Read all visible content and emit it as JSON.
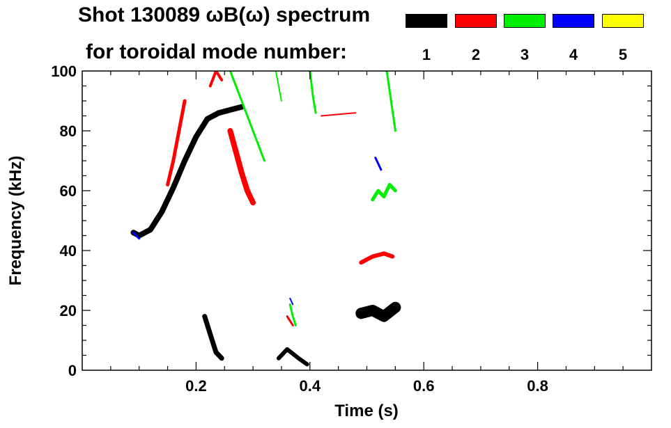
{
  "header": {
    "title_line1": "Shot 130089 ωB(ω) spectrum",
    "title_line2": "for toroidal mode number:",
    "modes": [
      {
        "number": "1",
        "color": "#000000"
      },
      {
        "number": "2",
        "color": "#ff0000"
      },
      {
        "number": "3",
        "color": "#00ee00"
      },
      {
        "number": "4",
        "color": "#0000ff"
      },
      {
        "number": "5",
        "color": "#ffff00"
      }
    ]
  },
  "chart_data": {
    "type": "heatmap",
    "title": "Shot 130089 ωB(ω) spectrum",
    "subtitle": "for toroidal mode number:",
    "xlabel": "Time (s)",
    "ylabel": "Frequency (kHz)",
    "xlim": [
      0.0,
      1.0
    ],
    "ylim": [
      0,
      100
    ],
    "x_ticks": [
      0.2,
      0.4,
      0.6,
      0.8
    ],
    "x_tick_labels": [
      "0.2",
      "0.4",
      "0.6",
      "0.8"
    ],
    "y_ticks": [
      0,
      20,
      40,
      60,
      80,
      100
    ],
    "y_tick_labels": [
      "0",
      "20",
      "40",
      "60",
      "80",
      "100"
    ],
    "grid": false,
    "legend": "top-right",
    "series": [
      {
        "name": "1",
        "color": "#000000",
        "segments": [
          {
            "t": [
              0.09,
              0.1,
              0.12,
              0.14,
              0.16,
              0.18,
              0.2,
              0.22,
              0.24,
              0.26,
              0.28
            ],
            "f": [
              46,
              45,
              47,
              53,
              61,
              70,
              78,
              84,
              86,
              87,
              88
            ],
            "width": 8
          },
          {
            "t": [
              0.215,
              0.225,
              0.235,
              0.245
            ],
            "f": [
              18,
              12,
              6,
              4
            ],
            "width": 7
          },
          {
            "t": [
              0.345,
              0.36,
              0.38,
              0.395
            ],
            "f": [
              4,
              7,
              4,
              2
            ],
            "width": 6
          },
          {
            "t": [
              0.49,
              0.51,
              0.53,
              0.55
            ],
            "f": [
              19,
              20,
              18,
              21
            ],
            "width": 16
          }
        ]
      },
      {
        "name": "2",
        "color": "#ff0000",
        "segments": [
          {
            "t": [
              0.15,
              0.16,
              0.17,
              0.18
            ],
            "f": [
              62,
              70,
              80,
              90
            ],
            "width": 5
          },
          {
            "t": [
              0.225,
              0.235,
              0.245
            ],
            "f": [
              95,
              100,
              97
            ],
            "width": 4
          },
          {
            "t": [
              0.26,
              0.27,
              0.28,
              0.29,
              0.3
            ],
            "f": [
              80,
              73,
              66,
              60,
              56
            ],
            "width": 8
          },
          {
            "t": [
              0.49,
              0.51,
              0.53,
              0.545
            ],
            "f": [
              36,
              38,
              39,
              38
            ],
            "width": 6
          },
          {
            "t": [
              0.42,
              0.48
            ],
            "f": [
              85,
              86
            ],
            "width": 2
          },
          {
            "t": [
              0.36,
              0.37
            ],
            "f": [
              18,
              15
            ],
            "width": 3
          }
        ]
      },
      {
        "name": "3",
        "color": "#00ee00",
        "segments": [
          {
            "t": [
              0.26,
              0.28,
              0.3,
              0.32
            ],
            "f": [
              100,
              90,
              80,
              70
            ],
            "width": 3
          },
          {
            "t": [
              0.34,
              0.345,
              0.35
            ],
            "f": [
              100,
              95,
              90
            ],
            "width": 2
          },
          {
            "t": [
              0.4,
              0.405,
              0.41
            ],
            "f": [
              100,
              92,
              86
            ],
            "width": 3
          },
          {
            "t": [
              0.51,
              0.52,
              0.53,
              0.54,
              0.55
            ],
            "f": [
              57,
              60,
              58,
              62,
              60
            ],
            "width": 5
          },
          {
            "t": [
              0.535,
              0.55
            ],
            "f": [
              100,
              80
            ],
            "width": 3
          },
          {
            "t": [
              0.365,
              0.37,
              0.375
            ],
            "f": [
              22,
              18,
              15
            ],
            "width": 3
          }
        ]
      },
      {
        "name": "4",
        "color": "#0000ff",
        "segments": [
          {
            "t": [
              0.09,
              0.1
            ],
            "f": [
              46,
              44
            ],
            "width": 3
          },
          {
            "t": [
              0.515,
              0.525
            ],
            "f": [
              71,
              67
            ],
            "width": 3
          },
          {
            "t": [
              0.365,
              0.37
            ],
            "f": [
              24,
              22
            ],
            "width": 2
          }
        ]
      },
      {
        "name": "5",
        "color": "#ffff00",
        "segments": []
      }
    ]
  }
}
